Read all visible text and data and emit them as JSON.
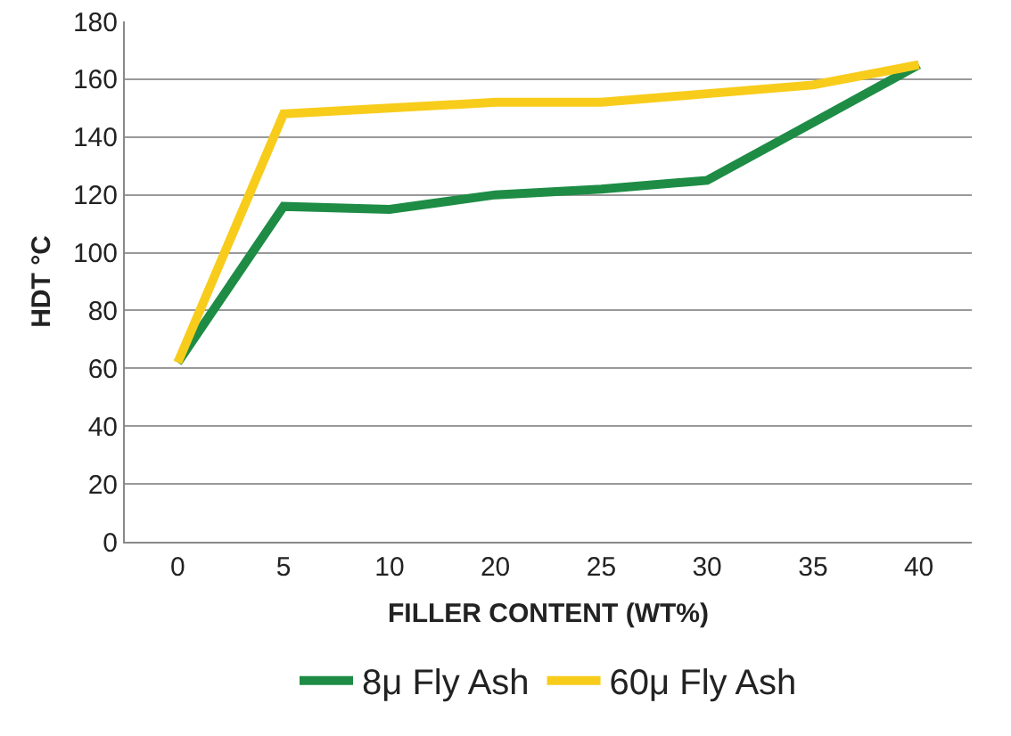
{
  "chart_data": {
    "type": "line",
    "xlabel": "FILLER CONTENT (WT%)",
    "ylabel": "HDT °C",
    "categories": [
      "0",
      "5",
      "10",
      "20",
      "25",
      "30",
      "35",
      "40"
    ],
    "series": [
      {
        "name": "8μ Fly Ash",
        "color": "#1e8c45",
        "values": [
          62,
          116,
          115,
          120,
          122,
          125,
          145,
          165
        ]
      },
      {
        "name": "60μ Fly Ash",
        "color": "#f8cc1b",
        "values": [
          62,
          148,
          150,
          152,
          152,
          155,
          158,
          165
        ]
      }
    ],
    "ylim": [
      0,
      180
    ],
    "yticks": [
      0,
      20,
      40,
      60,
      80,
      100,
      120,
      140,
      160,
      180
    ],
    "grid": "y",
    "legend": "bottom",
    "marker": "none",
    "line_style": "solid"
  }
}
